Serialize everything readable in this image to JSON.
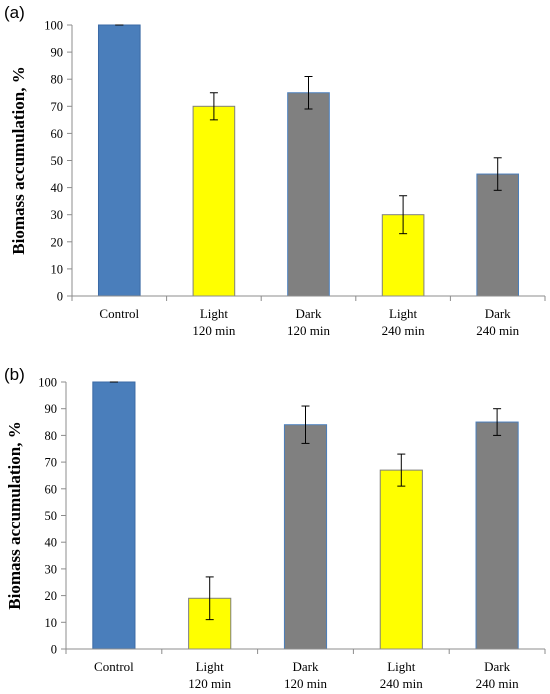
{
  "colors": {
    "control": "#4a7ebb",
    "light": "#ffff00",
    "dark": "#808080",
    "bar_edge_control": "#3b6aa5",
    "bar_edge_light": "#7f7f7f",
    "bar_edge_dark": "#4a7ebb"
  },
  "chart_data": [
    {
      "type": "bar",
      "panel_label": "(a)",
      "ylabel": "Biomass accumulation, %",
      "xlabel": "",
      "ylim": [
        0,
        100
      ],
      "yticks": [
        0,
        10,
        20,
        30,
        40,
        50,
        60,
        70,
        80,
        90,
        100
      ],
      "categories": [
        [
          "Control"
        ],
        [
          "Light",
          "120 min"
        ],
        [
          "Dark",
          "120 min"
        ],
        [
          "Light",
          "240 min"
        ],
        [
          "Dark",
          "240 min"
        ]
      ],
      "values": [
        100,
        70,
        75,
        30,
        45
      ],
      "errors": [
        0,
        5,
        6,
        7,
        6
      ],
      "bar_colors": [
        "control",
        "light",
        "dark",
        "light",
        "dark"
      ],
      "grid": false,
      "legend": "none"
    },
    {
      "type": "bar",
      "panel_label": "(b)",
      "ylabel": "Biomass accumulation, %",
      "xlabel": "",
      "ylim": [
        0,
        100
      ],
      "yticks": [
        0,
        10,
        20,
        30,
        40,
        50,
        60,
        70,
        80,
        90,
        100
      ],
      "categories": [
        [
          "Control"
        ],
        [
          "Light",
          "120 min"
        ],
        [
          "Dark",
          "120 min"
        ],
        [
          "Light",
          "240 min"
        ],
        [
          "Dark",
          "240 min"
        ]
      ],
      "values": [
        100,
        19,
        84,
        67,
        85
      ],
      "errors": [
        0,
        8,
        7,
        6,
        5
      ],
      "bar_colors": [
        "control",
        "light",
        "dark",
        "light",
        "dark"
      ],
      "grid": false,
      "legend": "none"
    }
  ]
}
